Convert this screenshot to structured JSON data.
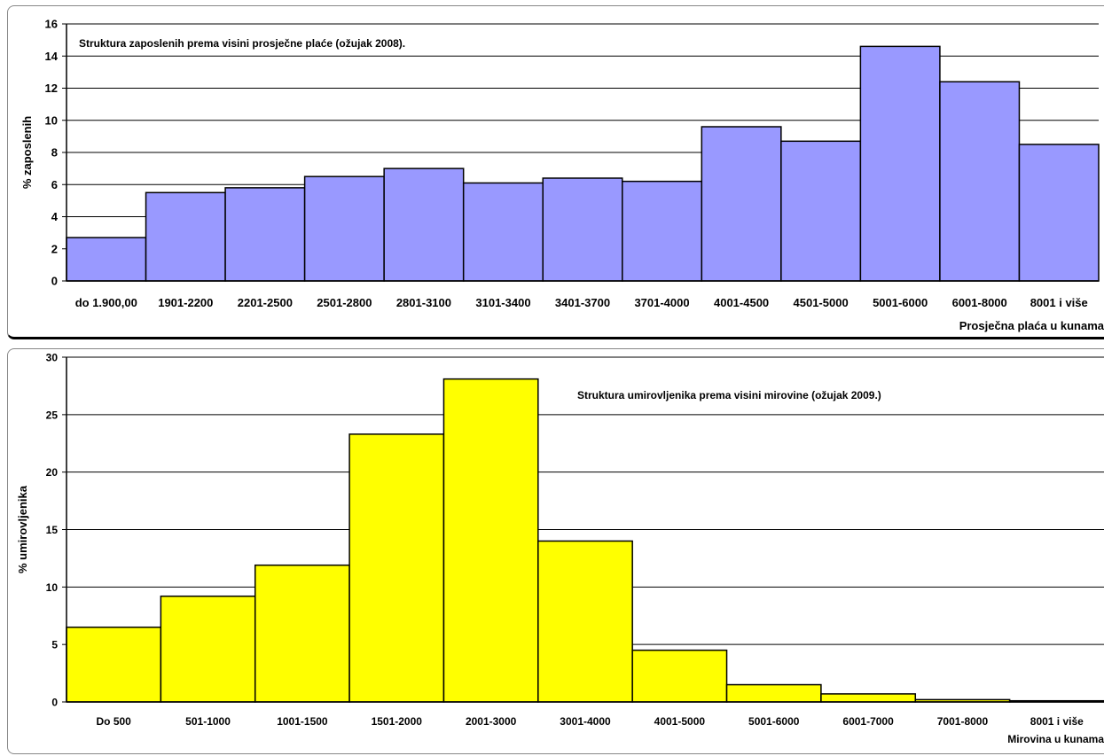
{
  "chart_data": [
    {
      "type": "bar",
      "title": "Struktura zaposlenih prema visini prosječne plaće (ožujak 2008).",
      "xlabel": "Prosječna plaća u kunama",
      "ylabel": "% zaposlenih",
      "ylim": [
        0,
        16
      ],
      "ytick_step": 2,
      "yticks": [
        "0",
        "2",
        "4",
        "6",
        "8",
        "10",
        "12",
        "14",
        "16"
      ],
      "grid": true,
      "bar_color": "#9999ff",
      "categories": [
        "do 1.900,00",
        "1901-2200",
        "2201-2500",
        "2501-2800",
        "2801-3100",
        "3101-3400",
        "3401-3700",
        "3701-4000",
        "4001-4500",
        "4501-5000",
        "5001-6000",
        "6001-8000",
        "8001 i više"
      ],
      "values": [
        2.7,
        5.5,
        5.8,
        6.5,
        7.0,
        6.1,
        6.4,
        6.2,
        9.6,
        8.7,
        14.6,
        12.4,
        8.5
      ]
    },
    {
      "type": "bar",
      "title": "Struktura umirovljenika prema visini mirovine (ožujak 2009.)",
      "xlabel": "Mirovina u kunama",
      "ylabel": "% umirovljenika",
      "ylim": [
        0,
        30
      ],
      "ytick_step": 5,
      "yticks": [
        "0",
        "5",
        "10",
        "15",
        "20",
        "25",
        "30"
      ],
      "grid": true,
      "bar_color": "#ffff00",
      "categories": [
        "Do 500",
        "501-1000",
        "1001-1500",
        "1501-2000",
        "2001-3000",
        "3001-4000",
        "4001-5000",
        "5001-6000",
        "6001-7000",
        "7001-8000",
        "8001 i više"
      ],
      "values": [
        6.5,
        9.2,
        11.9,
        23.3,
        28.1,
        14.0,
        4.5,
        1.5,
        0.7,
        0.2,
        0.1
      ]
    }
  ]
}
